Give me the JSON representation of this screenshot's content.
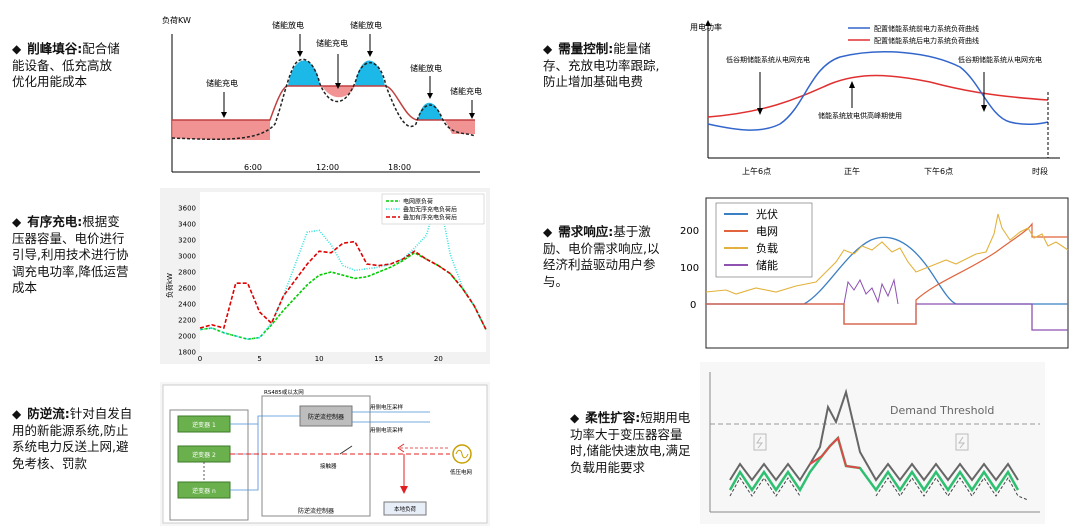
{
  "items": [
    {
      "title": "削峰填谷:",
      "desc": "配合储能设备、低充高放优化用能成本"
    },
    {
      "title": "有序充电:",
      "desc": "根据变压器容量、电价进行引导,利用技术进行协调充电功率,降低运营成本"
    },
    {
      "title": "防逆流:",
      "desc": "针对自发自用的新能源系统,防止系统电力反送上网,避免考核、罚款"
    },
    {
      "title": "需量控制:",
      "desc": "能量储存、充放电功率跟踪,防止增加基础电费"
    },
    {
      "title": "需求响应:",
      "desc": "基于激励、电价需求响应,以经济利益驱动用户参与。"
    },
    {
      "title": "柔性扩容:",
      "desc": "短期用电功率大于变压器容量时,储能快速放电,满足负载用能要求"
    }
  ],
  "bullet_symbol": "◆",
  "fig1": {
    "ylabel": "负荷KW",
    "charge1": "储能充电",
    "discharge1": "储能放电",
    "charge2": "储能充电",
    "discharge2": "储能放电",
    "discharge3": "储能放电",
    "charge3": "储能充电",
    "ticks": [
      "6:00",
      "12:00",
      "18:00"
    ]
  },
  "fig2": {
    "ylabel": "负荷kW",
    "legend": [
      "电网原负荷",
      "叠加无序充电负荷后",
      "叠加有序充电负荷后"
    ],
    "colors": {
      "original": "#00cc00",
      "unordered": "#33e0e0",
      "ordered": "#e00000"
    },
    "chart_data": {
      "type": "line",
      "ylim": [
        1800,
        3800
      ],
      "xlim": [
        0,
        24
      ],
      "yticks": [
        "3600",
        "3400",
        "3200",
        "3000",
        "2800",
        "2600",
        "2400",
        "2200",
        "2000",
        "1800"
      ],
      "xticks": [
        "0",
        "5",
        "10",
        "15",
        "20"
      ],
      "series": [
        {
          "name": "电网原负荷",
          "x": [
            0,
            1,
            2,
            3,
            4,
            5,
            6,
            7,
            8,
            9,
            10,
            11,
            12,
            13,
            14,
            15,
            16,
            17,
            18,
            19,
            20,
            21,
            22,
            23,
            24
          ],
          "values": [
            2080,
            2100,
            2040,
            2000,
            1960,
            1980,
            2140,
            2320,
            2480,
            2640,
            2760,
            2800,
            2760,
            2720,
            2740,
            2800,
            2860,
            2940,
            3040,
            2960,
            2880,
            2780,
            2600,
            2380,
            2080
          ]
        },
        {
          "name": "叠加无序充电负荷后",
          "x": [
            0,
            1,
            2,
            3,
            4,
            5,
            6,
            7,
            8,
            9,
            10,
            11,
            12,
            13,
            14,
            15,
            16,
            17,
            18,
            19,
            20,
            21,
            22,
            23,
            24
          ],
          "values": [
            2080,
            2100,
            2040,
            2000,
            1960,
            1980,
            2160,
            2500,
            2900,
            3300,
            3320,
            3140,
            2880,
            2820,
            2840,
            2860,
            2900,
            2960,
            3100,
            3260,
            3780,
            3020,
            2620,
            2380,
            2080
          ]
        },
        {
          "name": "叠加有序充电负荷后",
          "x": [
            0,
            1,
            2,
            3,
            4,
            5,
            6,
            7,
            8,
            9,
            10,
            11,
            12,
            13,
            14,
            15,
            16,
            17,
            18,
            19,
            20,
            21,
            22,
            23,
            24
          ],
          "values": [
            2100,
            2140,
            2100,
            2660,
            2660,
            2300,
            2160,
            2500,
            2700,
            2900,
            3060,
            3040,
            3160,
            3180,
            2900,
            2880,
            2900,
            2960,
            3060,
            2960,
            2880,
            2780,
            2600,
            2380,
            2080
          ]
        }
      ]
    }
  },
  "fig3": {
    "inv1": "逆变器 1",
    "inv2": "逆变器 2",
    "invn": "逆变器 n",
    "rs485": "RS485或以太网",
    "ctrl_top": "防逆流控制器",
    "v_sample": "用侧电压采样",
    "i_sample": "用侧电流采样",
    "breaker": "接触器",
    "grid": "低压电网",
    "local_load": "本地负荷",
    "ctrl_bottom": "防逆流控制器"
  },
  "fig4": {
    "ylabel": "用电功率",
    "xlabel": "时段",
    "legend": [
      "配置储能系统前电力系统负荷曲线",
      "配置储能系统后电力系统负荷曲线"
    ],
    "colors": [
      "#3366cc",
      "#e03030"
    ],
    "ann_left": "低谷期储能系统从电网充电",
    "ann_mid": "储能系统放电供高峰期使用",
    "ann_right": "低谷期储能系统从电网充电",
    "ticks": [
      "上午6点",
      "正午",
      "下午6点"
    ]
  },
  "fig5": {
    "legend": [
      "光伏",
      "电网",
      "负载",
      "储能"
    ],
    "colors": [
      "#3b7fc4",
      "#e0643c",
      "#e3b23c",
      "#8e52b2"
    ],
    "yticks": [
      "200",
      "100",
      "0"
    ]
  },
  "fig6": {
    "threshold": "Demand Threshold"
  }
}
